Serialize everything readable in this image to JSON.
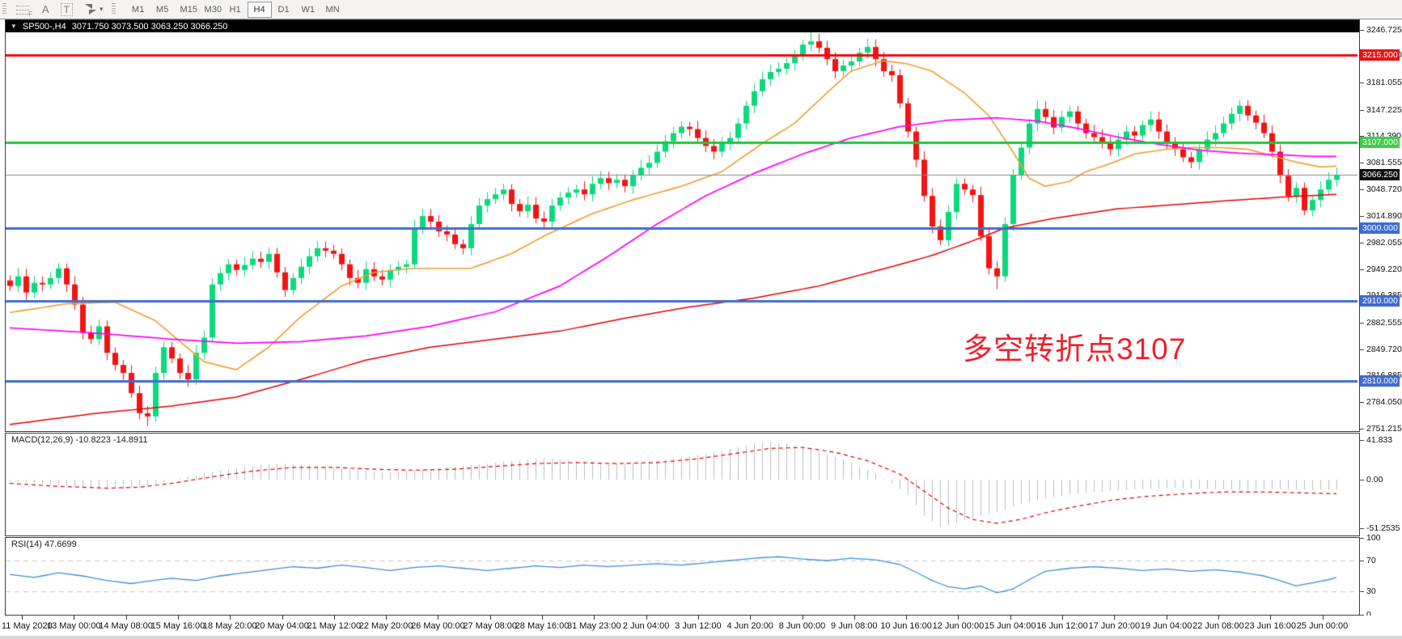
{
  "toolbar": {
    "tools": {
      "fib_label": "F",
      "text_label": "A",
      "label_label": "T"
    },
    "timeframes": [
      "M1",
      "M5",
      "M15",
      "M30",
      "H1",
      "H4",
      "D1",
      "W1",
      "MN"
    ],
    "active_timeframe": "H4"
  },
  "chart": {
    "title": {
      "symbol": "SP500-,H4",
      "ohlc": "3071.750 3073.500 3063.250 3066.250"
    }
  },
  "annotation": {
    "text": "多空转折点3107",
    "color": "#f0202b"
  },
  "indicators": {
    "macd": {
      "label": "MACD(12,26,9)",
      "values": "-10.8223 -14.8911",
      "axis_labels": [
        "41.833",
        "0.00",
        "-51.2535"
      ],
      "axis_values": [
        41.833,
        0,
        -51.2535
      ]
    },
    "rsi": {
      "label": "RSI(14)",
      "value": "47.6699",
      "axis_labels": [
        "100",
        "70",
        "30",
        "0"
      ],
      "axis_values": [
        100,
        70,
        30,
        0
      ]
    }
  },
  "price_axis": {
    "ticks": [
      "3246.725",
      "3215.000",
      "3181.055",
      "3147.225",
      "3114.390",
      "3081.555",
      "3048.720",
      "3014.890",
      "2982.055",
      "2949.220",
      "2916.385",
      "2882.555",
      "2849.720",
      "2816.885",
      "2784.050",
      "2751.215"
    ]
  },
  "time_axis": {
    "labels": [
      "11 May 2020",
      "13 May 00:00",
      "14 May 08:00",
      "15 May 16:00",
      "18 May 20:00",
      "20 May 04:00",
      "21 May 12:00",
      "22 May 20:00",
      "26 May 00:00",
      "27 May 08:00",
      "28 May 16:00",
      "31 May 23:00",
      "2 Jun 04:00",
      "3 Jun 12:00",
      "4 Jun 20:00",
      "8 Jun 00:00",
      "9 Jun 08:00",
      "10 Jun 16:00",
      "12 Jun 00:00",
      "15 Jun 04:00",
      "16 Jun 12:00",
      "17 Jun 20:00",
      "19 Jun 04:00",
      "22 Jun 08:00",
      "23 Jun 16:00",
      "25 Jun 00:00"
    ]
  },
  "chart_data": {
    "type": "candlestick",
    "symbol": "SP500",
    "timeframe": "H4",
    "visible_range": {
      "start": "11 May 2020",
      "end": "25 Jun 2020"
    },
    "price_axis_range": [
      2751.215,
      3258.0
    ],
    "colors": {
      "candle_up": "#0cd97e",
      "candle_down": "#f21414",
      "ma_fast": "#efa132",
      "ma_mid": "#ff00ff",
      "ma_slow": "#e60000",
      "macd_hist": "#bdbdbd",
      "macd_signal": "#e00000",
      "rsi_line": "#3f8edc",
      "rsi_levels": "#c9c9c9"
    },
    "candles": {
      "first_open": 2935,
      "closes": [
        2928,
        2940,
        2920,
        2932,
        2930,
        2938,
        2950,
        2930,
        2905,
        2870,
        2862,
        2878,
        2845,
        2830,
        2820,
        2795,
        2770,
        2766,
        2820,
        2852,
        2838,
        2820,
        2812,
        2845,
        2864,
        2930,
        2944,
        2955,
        2948,
        2954,
        2962,
        2958,
        2968,
        2945,
        2923,
        2938,
        2952,
        2965,
        2975,
        2972,
        2968,
        2955,
        2938,
        2932,
        2949,
        2940,
        2936,
        2948,
        2952,
        2955,
        3000,
        3015,
        3008,
        2996,
        2992,
        2980,
        2975,
        3005,
        3028,
        3036,
        3042,
        3048,
        3030,
        3021,
        3029,
        3012,
        3008,
        3028,
        3038,
        3044,
        3048,
        3042,
        3055,
        3062,
        3056,
        3060,
        3052,
        3066,
        3075,
        3081,
        3095,
        3108,
        3118,
        3126,
        3123,
        3112,
        3102,
        3095,
        3105,
        3112,
        3130,
        3152,
        3170,
        3185,
        3194,
        3198,
        3205,
        3215,
        3228,
        3232,
        3224,
        3210,
        3195,
        3202,
        3207,
        3218,
        3225,
        3210,
        3195,
        3190,
        3155,
        3120,
        3085,
        3040,
        3002,
        2985,
        3020,
        3055,
        3048,
        3041,
        2990,
        2950,
        2940,
        3005,
        3066,
        3100,
        3130,
        3148,
        3138,
        3125,
        3138,
        3145,
        3130,
        3118,
        3113,
        3105,
        3098,
        3110,
        3120,
        3115,
        3128,
        3135,
        3120,
        3105,
        3098,
        3088,
        3082,
        3098,
        3110,
        3118,
        3130,
        3142,
        3152,
        3140,
        3131,
        3118,
        3095,
        3065,
        3040,
        3050,
        3022,
        3035,
        3048,
        3060,
        3066.25
      ],
      "default_wick": 6,
      "low_overrides": {
        "17": 2754,
        "122": 2924
      },
      "high_overrides": {
        "99": 3243
      }
    },
    "ma_lines": {
      "fast": [
        [
          0,
          2895
        ],
        [
          7,
          2906
        ],
        [
          13,
          2908
        ],
        [
          18,
          2885
        ],
        [
          24,
          2834
        ],
        [
          28,
          2824
        ],
        [
          32,
          2852
        ],
        [
          36,
          2890
        ],
        [
          41,
          2928
        ],
        [
          45,
          2945
        ],
        [
          50,
          2950
        ],
        [
          57,
          2950
        ],
        [
          62,
          2968
        ],
        [
          66,
          2990
        ],
        [
          72,
          3018
        ],
        [
          77,
          3035
        ],
        [
          83,
          3052
        ],
        [
          88,
          3070
        ],
        [
          93,
          3105
        ],
        [
          97,
          3130
        ],
        [
          101,
          3168
        ],
        [
          104,
          3195
        ],
        [
          108,
          3208
        ],
        [
          111,
          3204
        ],
        [
          114,
          3195
        ],
        [
          118,
          3168
        ],
        [
          121,
          3140
        ],
        [
          124,
          3095
        ],
        [
          126,
          3062
        ],
        [
          128,
          3052
        ],
        [
          131,
          3058
        ],
        [
          133,
          3070
        ],
        [
          136,
          3080
        ],
        [
          139,
          3092
        ],
        [
          143,
          3098
        ],
        [
          146,
          3100
        ],
        [
          150,
          3100
        ],
        [
          153,
          3098
        ],
        [
          156,
          3090
        ],
        [
          159,
          3082
        ],
        [
          162,
          3076
        ],
        [
          164,
          3077
        ]
      ],
      "mid": [
        [
          0,
          2876
        ],
        [
          10,
          2870
        ],
        [
          20,
          2862
        ],
        [
          28,
          2857
        ],
        [
          36,
          2859
        ],
        [
          44,
          2866
        ],
        [
          52,
          2878
        ],
        [
          60,
          2896
        ],
        [
          68,
          2928
        ],
        [
          74,
          2965
        ],
        [
          80,
          3005
        ],
        [
          86,
          3040
        ],
        [
          92,
          3068
        ],
        [
          98,
          3092
        ],
        [
          104,
          3112
        ],
        [
          110,
          3126
        ],
        [
          116,
          3134
        ],
        [
          122,
          3137
        ],
        [
          127,
          3133
        ],
        [
          132,
          3124
        ],
        [
          137,
          3113
        ],
        [
          142,
          3104
        ],
        [
          147,
          3097
        ],
        [
          152,
          3093
        ],
        [
          157,
          3091
        ],
        [
          161,
          3089
        ],
        [
          164,
          3089
        ]
      ],
      "slow": [
        [
          0,
          2756
        ],
        [
          10,
          2769
        ],
        [
          20,
          2779
        ],
        [
          28,
          2790
        ],
        [
          36,
          2812
        ],
        [
          44,
          2836
        ],
        [
          52,
          2852
        ],
        [
          60,
          2862
        ],
        [
          68,
          2872
        ],
        [
          76,
          2888
        ],
        [
          84,
          2902
        ],
        [
          92,
          2913
        ],
        [
          100,
          2928
        ],
        [
          109,
          2952
        ],
        [
          114,
          2966
        ],
        [
          119,
          2984
        ],
        [
          123,
          3000
        ],
        [
          129,
          3012
        ],
        [
          137,
          3024
        ],
        [
          149,
          3033
        ],
        [
          158,
          3039
        ],
        [
          164,
          3042
        ]
      ]
    },
    "levels": [
      {
        "price": 3215,
        "label": "3215.000",
        "line_color": "#ee0b14",
        "label_bg": "#e81414"
      },
      {
        "price": 3107,
        "label": "3107.000",
        "line_color": "#21c43c",
        "label_bg": "#43cb4a"
      },
      {
        "price": 3000,
        "label": "3000.000",
        "line_color": "#3f6cd2",
        "label_bg": "#3f6cd2"
      },
      {
        "price": 2910,
        "label": "2910.000",
        "line_color": "#3f6cd2",
        "label_bg": "#3f6cd2"
      },
      {
        "price": 2810,
        "label": "2810.000",
        "line_color": "#3f6cd2",
        "label_bg": "#3f6cd2"
      }
    ],
    "current_price": {
      "price": 3066.25,
      "label": "3066.250",
      "line_color": "#8a8a8a",
      "label_bg": "#111111"
    },
    "macd": {
      "range": [
        -51.2535,
        41.833
      ],
      "hist_keyframes": [
        [
          0,
          -2
        ],
        [
          5,
          -5
        ],
        [
          10,
          -9
        ],
        [
          14,
          -10
        ],
        [
          18,
          -5
        ],
        [
          22,
          3
        ],
        [
          26,
          10
        ],
        [
          30,
          15
        ],
        [
          34,
          17
        ],
        [
          38,
          15
        ],
        [
          42,
          11
        ],
        [
          46,
          8
        ],
        [
          50,
          10
        ],
        [
          54,
          13
        ],
        [
          58,
          16
        ],
        [
          62,
          20
        ],
        [
          66,
          23
        ],
        [
          70,
          20
        ],
        [
          74,
          17
        ],
        [
          78,
          18
        ],
        [
          82,
          22
        ],
        [
          86,
          27
        ],
        [
          90,
          34
        ],
        [
          93,
          40
        ],
        [
          96,
          38
        ],
        [
          100,
          30
        ],
        [
          104,
          18
        ],
        [
          107,
          6
        ],
        [
          109,
          -4
        ],
        [
          111,
          -16
        ],
        [
          113,
          -38
        ],
        [
          115,
          -50
        ],
        [
          117,
          -46
        ],
        [
          119,
          -40
        ],
        [
          122,
          -34
        ],
        [
          125,
          -26
        ],
        [
          128,
          -20
        ],
        [
          132,
          -15
        ],
        [
          136,
          -12
        ],
        [
          140,
          -10
        ],
        [
          144,
          -9
        ],
        [
          148,
          -10
        ],
        [
          152,
          -11
        ],
        [
          156,
          -10
        ],
        [
          160,
          -11
        ],
        [
          164,
          -10.8
        ]
      ],
      "signal_keyframes": [
        [
          0,
          -4
        ],
        [
          6,
          -7
        ],
        [
          12,
          -9
        ],
        [
          16,
          -8
        ],
        [
          20,
          -4
        ],
        [
          25,
          3
        ],
        [
          30,
          9
        ],
        [
          35,
          13
        ],
        [
          40,
          13
        ],
        [
          45,
          11
        ],
        [
          50,
          10
        ],
        [
          55,
          11
        ],
        [
          60,
          14
        ],
        [
          65,
          17
        ],
        [
          70,
          18
        ],
        [
          75,
          17
        ],
        [
          80,
          18
        ],
        [
          85,
          22
        ],
        [
          90,
          28
        ],
        [
          94,
          33
        ],
        [
          98,
          34
        ],
        [
          102,
          29
        ],
        [
          106,
          20
        ],
        [
          110,
          6
        ],
        [
          113,
          -12
        ],
        [
          116,
          -30
        ],
        [
          119,
          -42
        ],
        [
          122,
          -46
        ],
        [
          125,
          -42
        ],
        [
          128,
          -35
        ],
        [
          132,
          -28
        ],
        [
          136,
          -22
        ],
        [
          140,
          -18
        ],
        [
          145,
          -15
        ],
        [
          150,
          -13
        ],
        [
          155,
          -13
        ],
        [
          160,
          -14
        ],
        [
          164,
          -14.89
        ]
      ]
    },
    "rsi": {
      "range": [
        0,
        100
      ],
      "levels": [
        70,
        30
      ],
      "keyframes": [
        [
          0,
          52
        ],
        [
          3,
          48
        ],
        [
          6,
          54
        ],
        [
          9,
          50
        ],
        [
          12,
          44
        ],
        [
          15,
          40
        ],
        [
          17,
          43
        ],
        [
          20,
          47
        ],
        [
          23,
          44
        ],
        [
          26,
          50
        ],
        [
          29,
          54
        ],
        [
          32,
          58
        ],
        [
          35,
          62
        ],
        [
          38,
          60
        ],
        [
          41,
          64
        ],
        [
          44,
          61
        ],
        [
          47,
          57
        ],
        [
          50,
          61
        ],
        [
          53,
          63
        ],
        [
          56,
          60
        ],
        [
          59,
          57
        ],
        [
          62,
          60
        ],
        [
          65,
          63
        ],
        [
          68,
          61
        ],
        [
          71,
          64
        ],
        [
          74,
          62
        ],
        [
          77,
          64
        ],
        [
          80,
          66
        ],
        [
          83,
          64
        ],
        [
          86,
          67
        ],
        [
          89,
          70
        ],
        [
          92,
          73
        ],
        [
          95,
          75
        ],
        [
          98,
          72
        ],
        [
          101,
          70
        ],
        [
          104,
          73
        ],
        [
          107,
          71
        ],
        [
          110,
          65
        ],
        [
          112,
          55
        ],
        [
          114,
          44
        ],
        [
          116,
          36
        ],
        [
          118,
          33
        ],
        [
          120,
          37
        ],
        [
          122,
          28
        ],
        [
          124,
          33
        ],
        [
          126,
          45
        ],
        [
          128,
          56
        ],
        [
          131,
          60
        ],
        [
          134,
          62
        ],
        [
          137,
          60
        ],
        [
          140,
          57
        ],
        [
          143,
          59
        ],
        [
          146,
          56
        ],
        [
          149,
          58
        ],
        [
          152,
          55
        ],
        [
          155,
          50
        ],
        [
          157,
          44
        ],
        [
          159,
          37
        ],
        [
          161,
          41
        ],
        [
          163,
          45
        ],
        [
          164,
          48
        ]
      ]
    }
  }
}
